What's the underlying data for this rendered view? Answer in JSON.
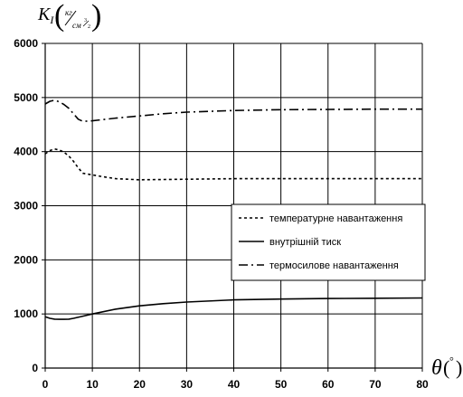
{
  "chart_data": {
    "type": "line",
    "title": "",
    "ylabel": {
      "main": "K",
      "sub": "I",
      "unit_num": "кг",
      "unit_den": "см",
      "exp_num": "3",
      "exp_den": "2"
    },
    "xlabel": {
      "main": "θ",
      "unit": "°"
    },
    "xlim": [
      0,
      80
    ],
    "ylim": [
      0,
      6000
    ],
    "xticks": [
      0,
      10,
      20,
      30,
      40,
      50,
      60,
      70,
      80
    ],
    "yticks": [
      0,
      1000,
      2000,
      3000,
      4000,
      5000,
      6000
    ],
    "grid": true,
    "legend_position": "center-right",
    "series": [
      {
        "name": "температурне навантаження",
        "style": "dotted",
        "x": [
          0,
          1,
          2,
          3,
          4,
          5,
          6,
          7,
          8,
          10,
          12,
          15,
          20,
          25,
          30,
          40,
          50,
          60,
          70,
          80
        ],
        "y": [
          3960,
          4020,
          4050,
          4030,
          3990,
          3920,
          3820,
          3700,
          3600,
          3570,
          3540,
          3500,
          3480,
          3485,
          3490,
          3500,
          3500,
          3500,
          3500,
          3500
        ]
      },
      {
        "name": "внутрішній тиск",
        "style": "solid",
        "x": [
          0,
          1,
          2,
          3,
          4,
          5,
          6,
          8,
          10,
          15,
          20,
          25,
          30,
          40,
          50,
          60,
          70,
          80
        ],
        "y": [
          950,
          920,
          905,
          900,
          900,
          905,
          920,
          960,
          1000,
          1090,
          1150,
          1190,
          1220,
          1260,
          1275,
          1285,
          1290,
          1295
        ]
      },
      {
        "name": "термосилове навантаження",
        "style": "dashdot",
        "x": [
          0,
          1,
          2,
          3,
          4,
          5,
          6,
          7,
          8,
          10,
          12,
          15,
          20,
          25,
          30,
          40,
          50,
          60,
          70,
          80
        ],
        "y": [
          4880,
          4930,
          4950,
          4920,
          4870,
          4800,
          4700,
          4600,
          4560,
          4570,
          4590,
          4620,
          4660,
          4700,
          4730,
          4760,
          4775,
          4780,
          4785,
          4785
        ]
      }
    ],
    "colors": {
      "line": "#000000",
      "grid": "#000000",
      "background": "#ffffff"
    }
  }
}
